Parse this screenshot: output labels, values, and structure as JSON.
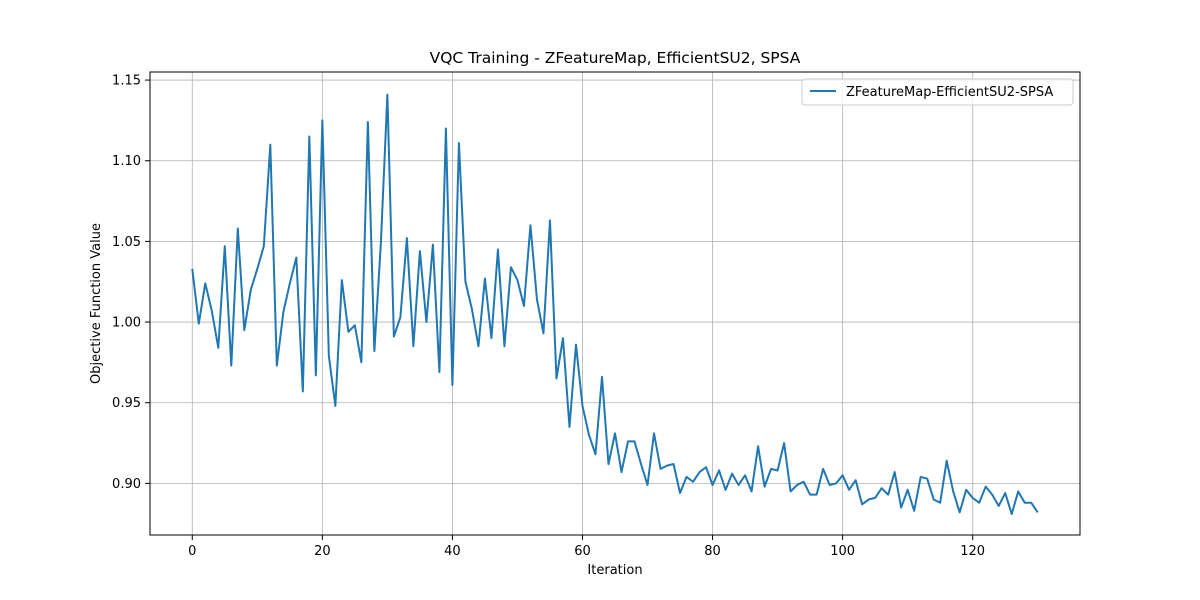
{
  "chart_data": {
    "type": "line",
    "title": "VQC Training - ZFeatureMap, EfficientSU2, SPSA",
    "xlabel": "Iteration",
    "ylabel": "Objective Function Value",
    "xlim": [
      -6.5,
      136.5
    ],
    "ylim": [
      0.868,
      1.155
    ],
    "xticks": [
      0,
      20,
      40,
      60,
      80,
      100,
      120
    ],
    "yticks": [
      0.9,
      0.95,
      1.0,
      1.05,
      1.1,
      1.15
    ],
    "xtick_labels": [
      "0",
      "20",
      "40",
      "60",
      "80",
      "100",
      "120"
    ],
    "ytick_labels": [
      "0.90",
      "0.95",
      "1.00",
      "1.05",
      "1.10",
      "1.15"
    ],
    "grid": true,
    "legend": "top-right",
    "series": [
      {
        "name": "ZFeatureMap-EfficientSU2-SPSA",
        "color": "#1f77b4",
        "y": [
          1.033,
          0.999,
          1.024,
          1.007,
          0.984,
          1.047,
          0.973,
          1.058,
          0.995,
          1.02,
          1.033,
          1.047,
          1.11,
          0.973,
          1.006,
          1.024,
          1.04,
          0.957,
          1.115,
          0.967,
          1.125,
          0.979,
          0.948,
          1.026,
          0.994,
          0.998,
          0.975,
          1.124,
          0.982,
          1.049,
          1.141,
          0.991,
          1.003,
          1.052,
          0.985,
          1.044,
          1.0,
          1.048,
          0.969,
          1.12,
          0.961,
          1.111,
          1.025,
          1.008,
          0.985,
          1.027,
          0.99,
          1.045,
          0.985,
          1.034,
          1.026,
          1.01,
          1.06,
          1.014,
          0.993,
          1.063,
          0.965,
          0.99,
          0.935,
          0.986,
          0.948,
          0.93,
          0.918,
          0.966,
          0.912,
          0.931,
          0.907,
          0.926,
          0.926,
          0.912,
          0.899,
          0.931,
          0.909,
          0.911,
          0.912,
          0.894,
          0.904,
          0.901,
          0.907,
          0.91,
          0.899,
          0.908,
          0.896,
          0.906,
          0.899,
          0.905,
          0.895,
          0.923,
          0.898,
          0.909,
          0.908,
          0.925,
          0.895,
          0.899,
          0.901,
          0.893,
          0.893,
          0.909,
          0.899,
          0.9,
          0.905,
          0.896,
          0.902,
          0.887,
          0.89,
          0.891,
          0.897,
          0.893,
          0.907,
          0.885,
          0.896,
          0.883,
          0.904,
          0.903,
          0.89,
          0.888,
          0.914,
          0.895,
          0.882,
          0.896,
          0.891,
          0.888,
          0.898,
          0.893,
          0.886,
          0.894,
          0.881,
          0.895,
          0.888,
          0.888,
          0.882
        ]
      }
    ]
  }
}
